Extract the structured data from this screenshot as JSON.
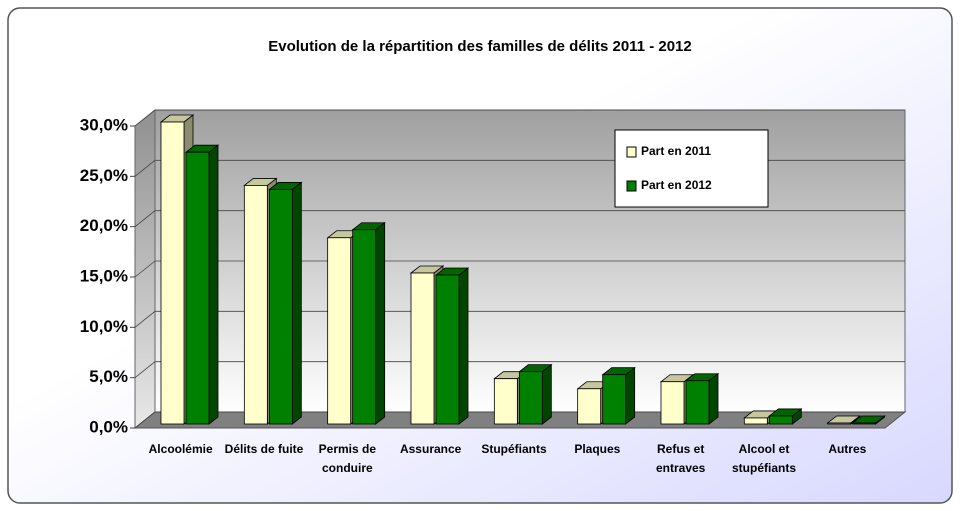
{
  "chart_data": {
    "type": "bar3d",
    "title": "Evolution de la répartition des familles de délits 2011 - 2012",
    "categories": [
      "Alcoolémie",
      "Délits de fuite",
      "Permis de conduire",
      "Assurance",
      "Stupéfiants",
      "Plaques",
      "Refus et entraves",
      "Alcool et stupéfiants",
      "Autres"
    ],
    "series": [
      {
        "name": "Part en 2011",
        "color": "#ffffcc",
        "values": [
          30.0,
          23.7,
          18.5,
          15.0,
          4.5,
          3.5,
          4.2,
          0.6,
          0.1
        ]
      },
      {
        "name": "Part en 2012",
        "color": "#008000",
        "values": [
          27.0,
          23.3,
          19.3,
          14.8,
          5.2,
          4.9,
          4.3,
          0.8,
          0.1
        ]
      }
    ],
    "ylim": [
      0,
      30
    ],
    "yticks": [
      {
        "value": 0,
        "label": "0,0%"
      },
      {
        "value": 5,
        "label": "5,0%"
      },
      {
        "value": 10,
        "label": "10,0%"
      },
      {
        "value": 15,
        "label": "15,0%"
      },
      {
        "value": 20,
        "label": "20,0%"
      },
      {
        "value": 25,
        "label": "25,0%"
      },
      {
        "value": 30,
        "label": "30,0%"
      }
    ],
    "grid": true,
    "legend": "upper right"
  }
}
